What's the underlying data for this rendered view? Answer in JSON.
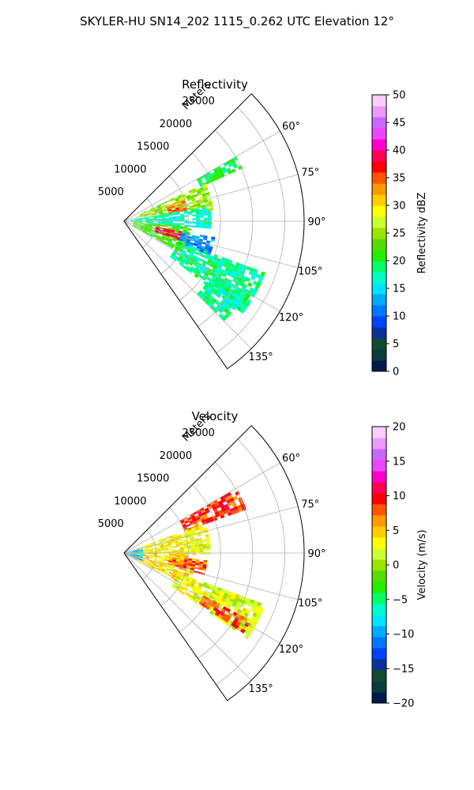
{
  "figure": {
    "title": "SKYLER-HU  SN14_202  1115_0.262 UTC Elevation 12°"
  },
  "chart_data": [
    {
      "type": "heatmap",
      "subtype": "polar-sector-ppi",
      "title": "Reflectivity",
      "radial_axis_label": "Meters",
      "radial_ticks": [
        5000,
        10000,
        15000,
        20000,
        25000
      ],
      "radial_tick_labels": [
        "5000",
        "10000",
        "15000",
        "20000",
        "25000"
      ],
      "range_max": 28000,
      "azimuth_range_deg": [
        45,
        145
      ],
      "azimuth_ticks": [
        60,
        75,
        90,
        105,
        120,
        135
      ],
      "azimuth_tick_labels": [
        "60°",
        "75°",
        "90°",
        "105°",
        "120°",
        "135°"
      ],
      "grid": true,
      "colorbar": {
        "label": "Reflectivity dBZ",
        "vmin": 0,
        "vmax": 50,
        "ticks": [
          0,
          5,
          10,
          15,
          20,
          25,
          30,
          35,
          40,
          45,
          50
        ],
        "tick_labels": [
          "0",
          "5",
          "10",
          "15",
          "20",
          "25",
          "30",
          "35",
          "40",
          "45",
          "50"
        ],
        "colors": [
          "#001a4d",
          "#0a3d3d",
          "#104a30",
          "#0a3399",
          "#0044ff",
          "#0077ff",
          "#00aaff",
          "#00e5ff",
          "#00ffc8",
          "#00ff66",
          "#22ee00",
          "#55dd00",
          "#99e600",
          "#ccff33",
          "#ffff00",
          "#ffcc00",
          "#ff9900",
          "#ff5500",
          "#ff0000",
          "#ff0055",
          "#ff00cc",
          "#ee44ff",
          "#cc66ff",
          "#ee99ff",
          "#ffccff"
        ]
      },
      "echo_regions": [
        {
          "az": [
            60,
            66
          ],
          "r": [
            13000,
            20000
          ],
          "value": 20
        },
        {
          "az": [
            65,
            82
          ],
          "r": [
            2000,
            14000
          ],
          "value": 25
        },
        {
          "az": [
            70,
            80
          ],
          "r": [
            7000,
            10000
          ],
          "value": 34
        },
        {
          "az": [
            80,
            95
          ],
          "r": [
            1000,
            13500
          ],
          "value": 17
        },
        {
          "az": [
            95,
            118
          ],
          "r": [
            1500,
            10000
          ],
          "value": 22
        },
        {
          "az": [
            100,
            108
          ],
          "r": [
            5000,
            9000
          ],
          "value": 38
        },
        {
          "az": [
            100,
            112
          ],
          "r": [
            9000,
            14000
          ],
          "value": 12
        },
        {
          "az": [
            110,
            128
          ],
          "r": [
            9000,
            23000
          ],
          "value": 18
        },
        {
          "az": [
            120,
            135
          ],
          "r": [
            16000,
            22000
          ],
          "value": 18
        }
      ]
    },
    {
      "type": "heatmap",
      "subtype": "polar-sector-ppi",
      "title": "Velocity",
      "radial_axis_label": "Meters",
      "radial_ticks": [
        5000,
        10000,
        15000,
        20000,
        25000
      ],
      "radial_tick_labels": [
        "5000",
        "10000",
        "15000",
        "20000",
        "25000"
      ],
      "range_max": 28000,
      "azimuth_range_deg": [
        45,
        145
      ],
      "azimuth_ticks": [
        60,
        75,
        90,
        105,
        120,
        135
      ],
      "azimuth_tick_labels": [
        "60°",
        "75°",
        "90°",
        "105°",
        "120°",
        "135°"
      ],
      "grid": true,
      "colorbar": {
        "label": "Velocity (m/s)",
        "vmin": -20,
        "vmax": 20,
        "ticks": [
          -20,
          -15,
          -10,
          -5,
          0,
          5,
          10,
          15,
          20
        ],
        "tick_labels": [
          "−20",
          "−15",
          "−10",
          "−5",
          "0",
          "5",
          "10",
          "15",
          "20"
        ],
        "colors": [
          "#001a4d",
          "#0a3d3d",
          "#104a30",
          "#0a3399",
          "#0044ff",
          "#0077ff",
          "#00aaff",
          "#00e5ff",
          "#00ffc8",
          "#00ff66",
          "#22ee00",
          "#55dd00",
          "#99e600",
          "#ccff33",
          "#ffff00",
          "#ffcc00",
          "#ff9900",
          "#ff5500",
          "#ff0000",
          "#ff0055",
          "#ff00cc",
          "#ee44ff",
          "#cc66ff",
          "#ee99ff",
          "#ffccff"
        ]
      },
      "echo_regions": [
        {
          "az": [
            60,
            70
          ],
          "r": [
            10000,
            20000
          ],
          "value": 9
        },
        {
          "az": [
            70,
            90
          ],
          "r": [
            1500,
            13500
          ],
          "value": 3
        },
        {
          "az": [
            90,
            118
          ],
          "r": [
            1000,
            11000
          ],
          "value": 4
        },
        {
          "az": [
            95,
            105
          ],
          "r": [
            7000,
            12500
          ],
          "value": 8
        },
        {
          "az": [
            110,
            125
          ],
          "r": [
            9000,
            23000
          ],
          "value": 2
        },
        {
          "az": [
            118,
            124
          ],
          "r": [
            14000,
            22000
          ],
          "value": 8
        },
        {
          "az": [
            75,
            115
          ],
          "r": [
            0,
            2500
          ],
          "value": -9
        }
      ]
    }
  ]
}
